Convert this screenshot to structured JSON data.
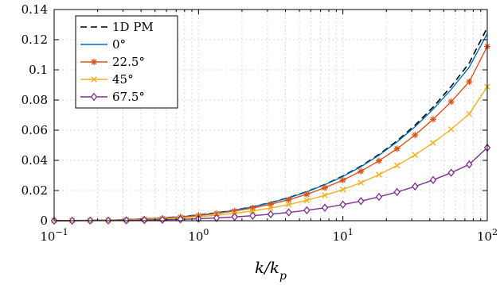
{
  "chart_data": {
    "type": "line",
    "xlabel": "k/k",
    "xlabel_sub": "p",
    "xscale": "log",
    "xlim": [
      0.1,
      100
    ],
    "ylim": [
      0,
      0.14
    ],
    "x_ticks": [
      0.1,
      1,
      10,
      100
    ],
    "x_tick_labels": [
      {
        "base": "10",
        "exp": "−1"
      },
      {
        "base": "10",
        "exp": "0"
      },
      {
        "base": "10",
        "exp": "1"
      },
      {
        "base": "10",
        "exp": "2"
      }
    ],
    "y_ticks": [
      0,
      0.02,
      0.04,
      0.06,
      0.08,
      0.1,
      0.12,
      0.14
    ],
    "y_tick_labels": [
      "0",
      "0.02",
      "0.04",
      "0.06",
      "0.08",
      "0.1",
      "0.12",
      "0.14"
    ],
    "grid": true,
    "legend_position": "top-left",
    "x": [
      0.1,
      0.1333,
      0.1778,
      0.2371,
      0.3162,
      0.4217,
      0.5623,
      0.7499,
      1.0,
      1.3335,
      1.7783,
      2.3714,
      3.1623,
      4.217,
      5.6234,
      7.4989,
      10.0,
      13.335,
      17.783,
      23.714,
      31.623,
      42.17,
      56.234,
      74.989,
      100.0
    ],
    "series": [
      {
        "name": "1D PM",
        "color": "#000000",
        "dash": "8 5",
        "marker": "none",
        "values": [
          0.0,
          0.0001,
          0.0002,
          0.0004,
          0.0007,
          0.0012,
          0.0018,
          0.0027,
          0.0038,
          0.0052,
          0.007,
          0.0093,
          0.012,
          0.0153,
          0.0193,
          0.024,
          0.0296,
          0.0362,
          0.0439,
          0.0529,
          0.0633,
          0.0753,
          0.089,
          0.1045,
          0.128
        ]
      },
      {
        "name": "0°",
        "color": "#0072bd",
        "dash": "",
        "marker": "none",
        "values": [
          0.0,
          0.0001,
          0.0002,
          0.0004,
          0.0007,
          0.0012,
          0.0018,
          0.0026,
          0.0037,
          0.0051,
          0.0069,
          0.0092,
          0.0119,
          0.0151,
          0.0191,
          0.0238,
          0.0293,
          0.0358,
          0.0434,
          0.0522,
          0.0623,
          0.0739,
          0.087,
          0.1018,
          0.124
        ]
      },
      {
        "name": "22.5°",
        "color": "#d95319",
        "dash": "",
        "marker": "star",
        "values": [
          0.0,
          0.0001,
          0.0002,
          0.0003,
          0.0006,
          0.0011,
          0.0016,
          0.0024,
          0.0034,
          0.0047,
          0.0064,
          0.0084,
          0.0109,
          0.0139,
          0.0175,
          0.0218,
          0.0269,
          0.0328,
          0.0397,
          0.0477,
          0.0568,
          0.0672,
          0.0789,
          0.0921,
          0.1155
        ]
      },
      {
        "name": "45°",
        "color": "#edb120",
        "dash": "",
        "marker": "x",
        "values": [
          0.0,
          0.0001,
          0.0001,
          0.0003,
          0.0005,
          0.0008,
          0.0012,
          0.0018,
          0.0026,
          0.0036,
          0.0049,
          0.0065,
          0.0084,
          0.0107,
          0.0135,
          0.0168,
          0.0207,
          0.0252,
          0.0305,
          0.0366,
          0.0436,
          0.0516,
          0.0606,
          0.0708,
          0.0888
        ]
      },
      {
        "name": "67.5°",
        "color": "#7e2f8e",
        "dash": "",
        "marker": "diamond",
        "values": [
          0.0,
          0.0,
          0.0001,
          0.0001,
          0.0002,
          0.0004,
          0.0006,
          0.0009,
          0.0013,
          0.0018,
          0.0025,
          0.0033,
          0.0043,
          0.0055,
          0.0069,
          0.0086,
          0.0107,
          0.013,
          0.0158,
          0.019,
          0.0227,
          0.027,
          0.0318,
          0.0373,
          0.0484
        ]
      }
    ]
  }
}
